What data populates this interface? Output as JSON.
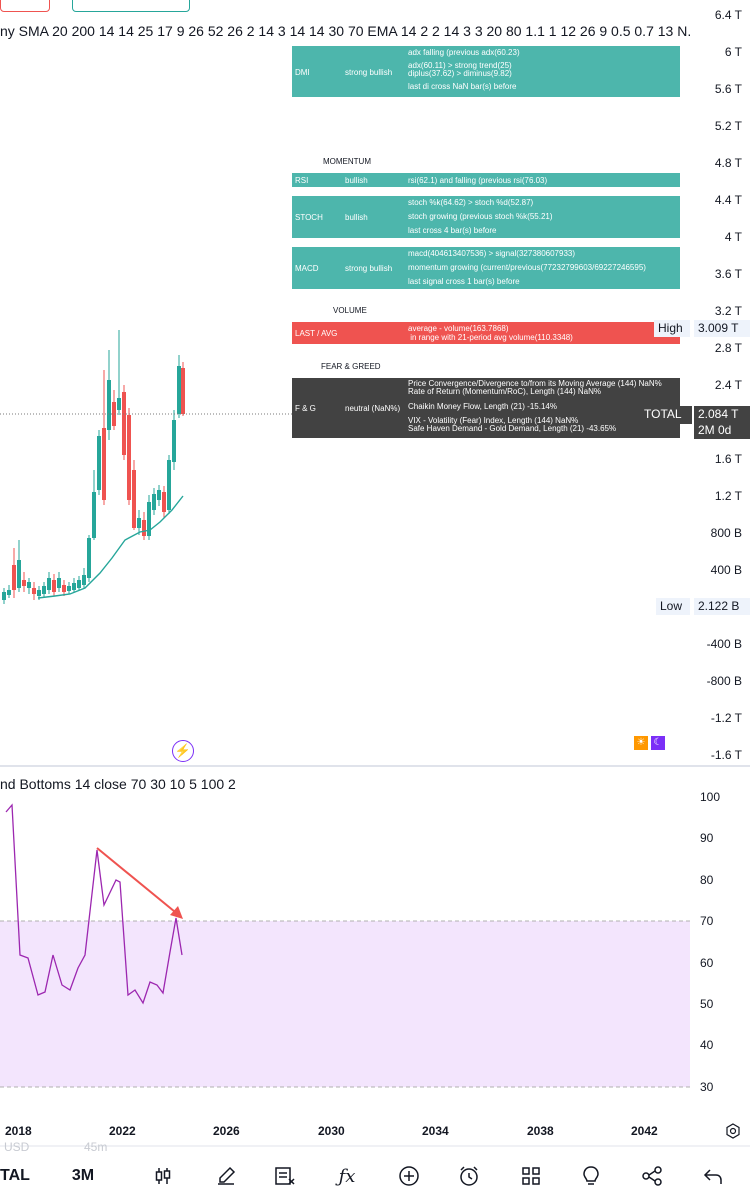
{
  "header": {
    "indicator_strip": "ny SMA 20 200 14 14 25 17 9 26 52 26 2 14 3 14 14 30 70 EMA 14 2 2 14 3 3 20 80 1.1 1 12 26 9 0.5 0.7 13 N..."
  },
  "panels": {
    "dmi": {
      "name": "DMI",
      "status": "strong bullish",
      "lines": [
        "adx falling (previous adx(60.23)",
        "adx(60.11) > strong trend(25)",
        "diplus(37.62) > diminus(9.82)",
        "last di cross NaN bar(s) before"
      ]
    },
    "momentum_header": "MOMENTUM",
    "rsi": {
      "name": "RSI",
      "status": "bullish",
      "lines": [
        "rsi(62.1) and falling (previous rsi(76.03)"
      ]
    },
    "stoch": {
      "name": "STOCH",
      "status": "bullish",
      "lines": [
        "stoch %k(64.62) > stoch %d(52.87)",
        "stoch growing  (previous stoch %k(55.21)",
        "last cross 4 bar(s) before"
      ]
    },
    "macd": {
      "name": "MACD",
      "status": "strong bullish",
      "lines": [
        "macd(404613407536) > signal(327380607933)",
        "momentum growing (current/previous(77232799603/69227246595)",
        "last signal cross 1 bar(s) before"
      ]
    },
    "volume_header": "VOLUME",
    "last_avg": {
      "name": "LAST / AVG",
      "lines": [
        "average - volume(163.7868)",
        " in range with 21-period avg volume(110.3348)"
      ]
    },
    "fear_header": "FEAR & GREED",
    "fng": {
      "name": "F & G",
      "status": "neutral (NaN%)",
      "lines": [
        "Price Convergence/Divergence to/from its Moving Average (144) NaN%",
        "Rate of Return (Momentum/RoC), Length (144) NaN%",
        "Chaikin Money Flow, Length (21) -15.14%",
        "VIX - Volatility (Fear) Index, Length (144) NaN%",
        "Safe Haven Demand - Gold Demand, Length (21) -43.65%"
      ]
    }
  },
  "price_axis": {
    "ticks": [
      "6.4 T",
      "6 T",
      "5.6 T",
      "5.2 T",
      "4.8 T",
      "4.4 T",
      "4 T",
      "3.6 T",
      "3.2 T",
      "2.8 T",
      "2.4 T",
      "1.6 T",
      "1.2 T",
      "800 B",
      "400 B",
      "-400 B",
      "-800 B",
      "-1.2 T",
      "-1.6 T"
    ],
    "high_label": "High",
    "high_value": "3.009 T",
    "total_label": "TOTAL",
    "total_value": "2.084 T",
    "total_countdown": "2M 0d",
    "low_label": "Low",
    "low_value": "2.122 B"
  },
  "oscillator": {
    "title": "nd Bottoms 14 close 70 30 10 5 100 2",
    "ticks": [
      "100",
      "90",
      "80",
      "70",
      "60",
      "50",
      "40",
      "30"
    ]
  },
  "time_axis": {
    "ticks": [
      "2018",
      "2022",
      "2026",
      "2030",
      "2034",
      "2038",
      "2042"
    ]
  },
  "footer_faded": {
    "left": "USD",
    "right": "45m"
  },
  "toolbar": {
    "symbol": "TAL",
    "interval": "3M",
    "icons": [
      "candles-icon",
      "brush-icon",
      "indicator-template-icon",
      "fx-icon",
      "add-circle-icon",
      "alarm-icon",
      "layout-grid-icon",
      "lightbulb-icon",
      "share-icon",
      "undo-icon"
    ]
  },
  "colors": {
    "bull": "#26a69a",
    "bear": "#ef5350",
    "osc_line": "#9c27b0",
    "osc_band": "#f3e5fd",
    "accent_purple": "#7b2ff7"
  }
}
